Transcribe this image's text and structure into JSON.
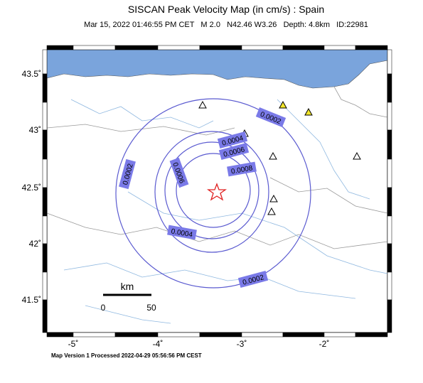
{
  "header": {
    "title": "SISCAN Peak Velocity Map (in cm/s) : Spain",
    "subtitle": "Mar 15, 2022 01:46:55 PM CET   M 2.0   N42.46 W3.26   Depth: 4.8km   ID:22981"
  },
  "map": {
    "lon_labels": [
      "-5˚",
      "-4˚",
      "-3˚",
      "-2˚"
    ],
    "lat_labels": [
      "43.5˚",
      "43˚",
      "42.5˚",
      "42˚",
      "41.5˚"
    ],
    "contour_labels": [
      "0.0002",
      "0.0002",
      "0.0002",
      "0.0004",
      "0.0004",
      "0.0006",
      "0.0006",
      "0.0008"
    ],
    "scale": {
      "unit": "km",
      "start": "0",
      "end": "50"
    }
  },
  "footer": "Map Version 1 Processed 2022-04-29 05:56:56 PM CEST"
}
